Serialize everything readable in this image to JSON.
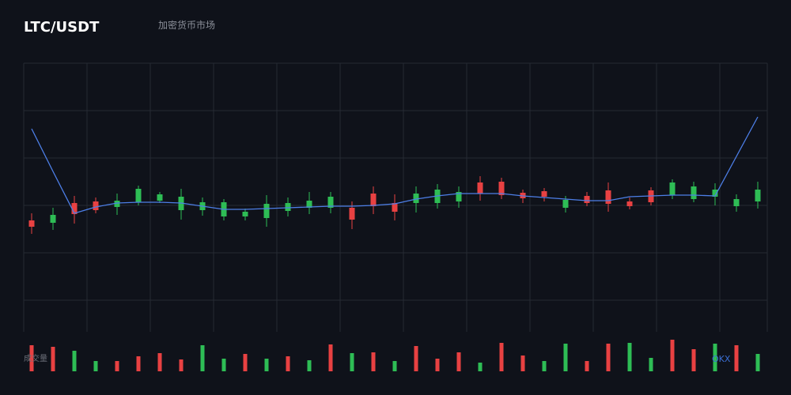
{
  "header": {
    "title": "LTC/USDT",
    "subtitle": "加密货币市场"
  },
  "chart_data": {
    "type": "candlestick",
    "open": [
      141,
      138,
      163,
      165,
      158,
      164,
      166,
      154,
      154,
      146,
      146,
      144,
      153,
      157,
      157,
      157,
      175,
      163,
      163,
      163,
      165,
      189,
      190,
      176,
      178,
      157,
      172,
      179,
      165,
      179,
      173,
      168,
      171,
      159,
      165
    ],
    "high": [
      150,
      157,
      172,
      170,
      175,
      185,
      177,
      181,
      170,
      168,
      156,
      173,
      170,
      177,
      177,
      165,
      184,
      174,
      184,
      187,
      184,
      197,
      195,
      180,
      182,
      172,
      177,
      189,
      170,
      183,
      193,
      190,
      188,
      174,
      190
    ],
    "low": [
      124,
      129,
      137,
      150,
      148,
      160,
      163,
      142,
      147,
      141,
      141,
      133,
      146,
      149,
      150,
      130,
      149,
      141,
      151,
      156,
      157,
      166,
      168,
      163,
      165,
      151,
      159,
      152,
      155,
      160,
      168,
      164,
      160,
      152,
      156
    ],
    "close": [
      133,
      148,
      149,
      154,
      166,
      181,
      174,
      171,
      164,
      164,
      152,
      162,
      163,
      166,
      171,
      142,
      159,
      152,
      175,
      180,
      177,
      175,
      173,
      169,
      171,
      167,
      163,
      162,
      159,
      164,
      189,
      184,
      180,
      168,
      180
    ],
    "up_color": "#2ebd55",
    "down_color": "#e84142",
    "ylim": [
      0,
      340
    ],
    "ma": {
      "color": "#4d7fe8",
      "values": [
        257,
        203,
        150,
        158,
        163,
        164,
        164,
        163,
        159,
        155,
        155,
        156,
        157,
        158,
        159,
        159,
        160,
        162,
        168,
        172,
        175,
        175,
        175,
        172,
        170,
        168,
        166,
        166,
        171,
        172,
        173,
        173,
        172,
        222,
        272
      ]
    },
    "volume": {
      "label": "成交量",
      "ylim": [
        0,
        45
      ],
      "values": [
        33,
        31,
        26,
        13,
        13,
        19,
        23,
        15,
        33,
        16,
        22,
        16,
        19,
        14,
        34,
        23,
        24,
        13,
        32,
        16,
        24,
        11,
        36,
        20,
        13,
        35,
        13,
        35,
        36,
        17,
        40,
        28,
        35,
        33,
        22
      ],
      "colors": [
        "#e84142",
        "#e84142",
        "#2ebd55",
        "#2ebd55",
        "#e84142",
        "#e84142",
        "#e84142",
        "#e84142",
        "#2ebd55",
        "#2ebd55",
        "#e84142",
        "#2ebd55",
        "#e84142",
        "#2ebd55",
        "#e84142",
        "#2ebd55",
        "#e84142",
        "#2ebd55",
        "#e84142",
        "#e84142",
        "#e84142",
        "#2ebd55",
        "#e84142",
        "#e84142",
        "#2ebd55",
        "#2ebd55",
        "#e84142",
        "#e84142",
        "#2ebd55",
        "#2ebd55",
        "#e84142",
        "#e84142",
        "#2ebd55",
        "#e84142",
        "#2ebd55"
      ]
    },
    "grid": true
  },
  "footer": {
    "brand": "OKX"
  }
}
